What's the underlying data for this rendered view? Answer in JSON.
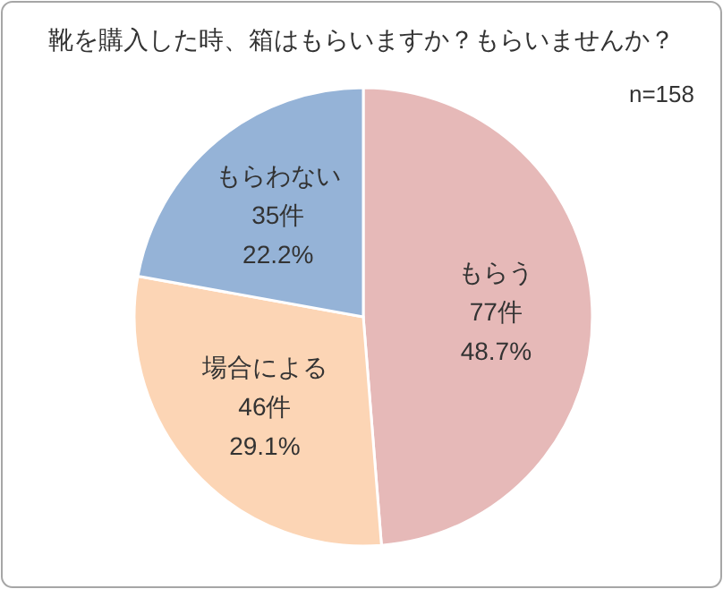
{
  "chart_data": {
    "type": "pie",
    "title": "靴を購入した時、箱はもらいますか？もらいませんか？",
    "annotations": [
      "n=158"
    ],
    "categories": [
      "もらう",
      "場合による",
      "もらわない"
    ],
    "values": [
      77,
      46,
      35
    ],
    "value_labels": [
      "77件\n48.7%",
      "46件\n29.1%",
      "35件\n22.2%"
    ],
    "colors": [
      "#e6b9b8",
      "#fcd5b5",
      "#95b3d7"
    ]
  }
}
